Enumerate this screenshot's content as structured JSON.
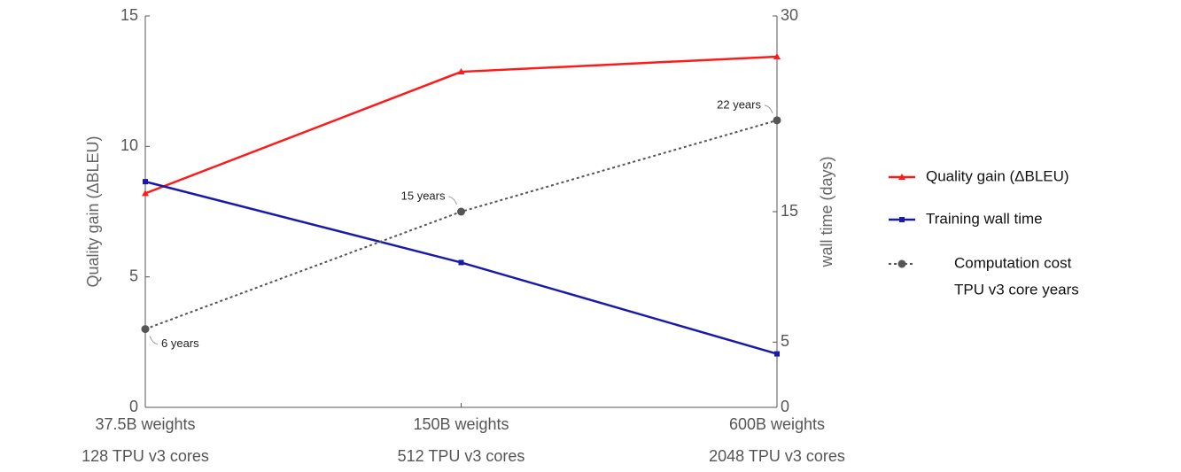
{
  "chart_data": {
    "type": "line",
    "categories": [
      [
        "37.5B weights",
        "128 TPU v3 cores"
      ],
      [
        "150B weights",
        "512 TPU v3 cores"
      ],
      [
        "600B weights",
        "2048 TPU v3 cores"
      ]
    ],
    "ylabel": "Quality gain (ΔBLEU)",
    "y2label": "wall time (days)",
    "ylim": [
      0,
      15
    ],
    "yticks": [
      0,
      5,
      10,
      15
    ],
    "y2lim": [
      0,
      30
    ],
    "y2ticks": [
      0,
      5,
      15,
      30
    ],
    "series": [
      {
        "name": [
          "Quality gain (ΔBLEU)"
        ],
        "color": "#ff1a1a",
        "marker": "triangle",
        "values": [
          8.2,
          12.86,
          13.44
        ]
      },
      {
        "name": [
          "Training wall time"
        ],
        "color": "#1a1aaa",
        "marker": "square",
        "axis": "y2",
        "values": [
          17.3,
          11.1,
          4.1
        ]
      },
      {
        "name": [
          "Computation cost",
          "TPU v3 core years"
        ],
        "color": "#555555",
        "marker": "circle",
        "dashed": true,
        "axis": "y2",
        "values": [
          6,
          15,
          22
        ],
        "value_labels": [
          "6 years",
          "15 years",
          "22 years"
        ]
      }
    ]
  }
}
